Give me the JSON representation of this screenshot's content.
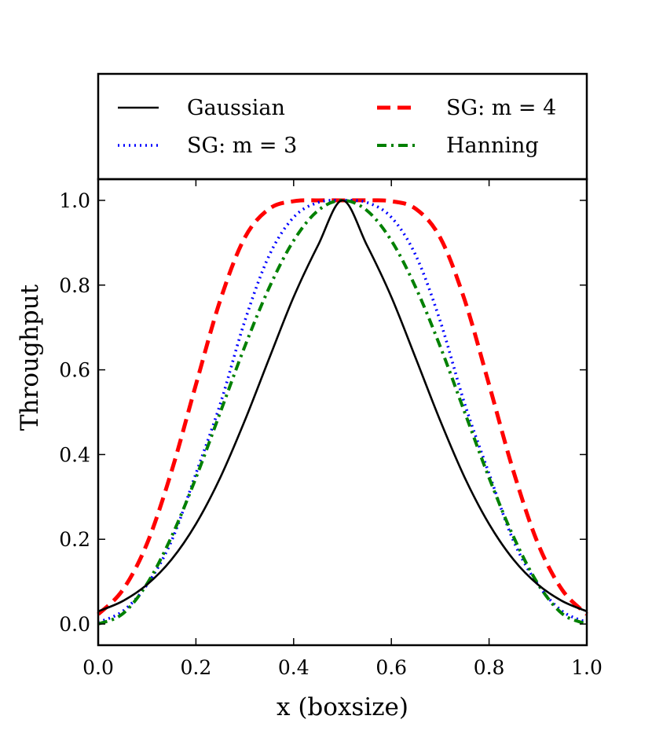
{
  "chart_data": {
    "type": "line",
    "title": "",
    "xlabel": "x (boxsize)",
    "ylabel": "Throughput",
    "xlim": [
      0.0,
      1.0
    ],
    "ylim": [
      -0.05,
      1.05
    ],
    "xticks": [
      "0.0",
      "0.2",
      "0.4",
      "0.6",
      "0.8",
      "1.0"
    ],
    "yticks": [
      "0.0",
      "0.2",
      "0.4",
      "0.6",
      "0.8",
      "1.0"
    ],
    "grid": false,
    "legend_position": "top (separate panel above plot)",
    "series": [
      {
        "name": "Gaussian",
        "color": "#000000",
        "style": "solid",
        "x": [
          0.0,
          0.05,
          0.1,
          0.15,
          0.2,
          0.25,
          0.3,
          0.35,
          0.4,
          0.45,
          0.5,
          0.55,
          0.6,
          0.65,
          0.7,
          0.75,
          0.8,
          0.85,
          0.9,
          0.95,
          1.0
        ],
        "y": [
          0.03,
          0.054,
          0.093,
          0.152,
          0.236,
          0.346,
          0.48,
          0.627,
          0.772,
          0.894,
          1.0,
          0.894,
          0.772,
          0.627,
          0.48,
          0.346,
          0.236,
          0.152,
          0.093,
          0.054,
          0.03
        ]
      },
      {
        "name": "SG: m = 3",
        "color": "#0000ff",
        "style": "dotted",
        "x": [
          0.0,
          0.05,
          0.1,
          0.15,
          0.2,
          0.25,
          0.3,
          0.35,
          0.4,
          0.45,
          0.5,
          0.55,
          0.6,
          0.65,
          0.7,
          0.75,
          0.8,
          0.85,
          0.9,
          0.95,
          1.0
        ],
        "y": [
          0.004,
          0.03,
          0.093,
          0.196,
          0.355,
          0.52,
          0.715,
          0.87,
          0.96,
          0.995,
          1.0,
          0.995,
          0.96,
          0.87,
          0.715,
          0.52,
          0.355,
          0.196,
          0.093,
          0.03,
          0.004
        ]
      },
      {
        "name": "SG: m = 4",
        "color": "#ff0000",
        "style": "dashed",
        "x": [
          0.0,
          0.05,
          0.1,
          0.15,
          0.2,
          0.25,
          0.3,
          0.35,
          0.4,
          0.45,
          0.5,
          0.55,
          0.6,
          0.65,
          0.7,
          0.75,
          0.8,
          0.85,
          0.9,
          0.95,
          1.0
        ],
        "y": [
          0.023,
          0.08,
          0.19,
          0.36,
          0.565,
          0.765,
          0.912,
          0.98,
          0.998,
          1.0,
          1.0,
          1.0,
          0.998,
          0.98,
          0.912,
          0.765,
          0.565,
          0.36,
          0.19,
          0.08,
          0.023
        ]
      },
      {
        "name": "Hanning",
        "color": "#008000",
        "style": "dashdot",
        "x": [
          0.0,
          0.05,
          0.1,
          0.15,
          0.2,
          0.25,
          0.3,
          0.35,
          0.4,
          0.45,
          0.5,
          0.55,
          0.6,
          0.65,
          0.7,
          0.75,
          0.8,
          0.85,
          0.9,
          0.95,
          1.0
        ],
        "y": [
          0.0,
          0.024,
          0.095,
          0.206,
          0.345,
          0.5,
          0.655,
          0.794,
          0.905,
          0.976,
          1.0,
          0.976,
          0.905,
          0.794,
          0.655,
          0.5,
          0.345,
          0.206,
          0.095,
          0.024,
          0.0
        ]
      }
    ]
  }
}
